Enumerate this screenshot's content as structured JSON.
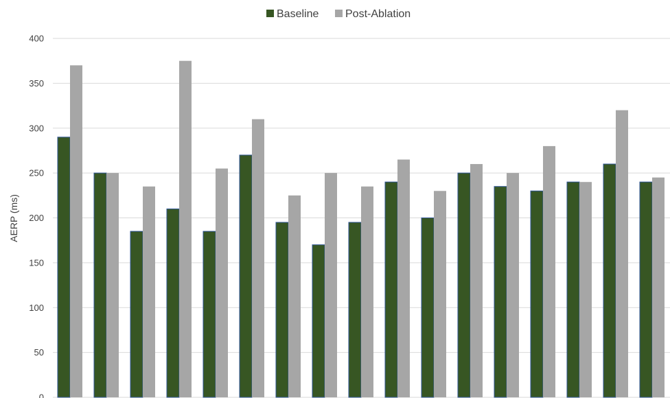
{
  "chart_data": {
    "type": "bar",
    "title": "",
    "xlabel": "",
    "ylabel": "AERP (ms)",
    "ylim": [
      0,
      400
    ],
    "yticks": [
      0,
      50,
      100,
      150,
      200,
      250,
      300,
      350,
      400
    ],
    "grid": true,
    "legend_position": "top-center",
    "series": [
      {
        "name": "Baseline",
        "color": "#375623",
        "values": [
          290,
          250,
          185,
          210,
          185,
          270,
          195,
          170,
          195,
          240,
          200,
          250,
          235,
          230,
          240,
          260,
          240
        ]
      },
      {
        "name": "Post-Ablation",
        "color": "#a6a6a6",
        "values": [
          370,
          250,
          235,
          375,
          255,
          310,
          225,
          250,
          235,
          265,
          230,
          260,
          250,
          280,
          240,
          320,
          245
        ]
      }
    ]
  }
}
